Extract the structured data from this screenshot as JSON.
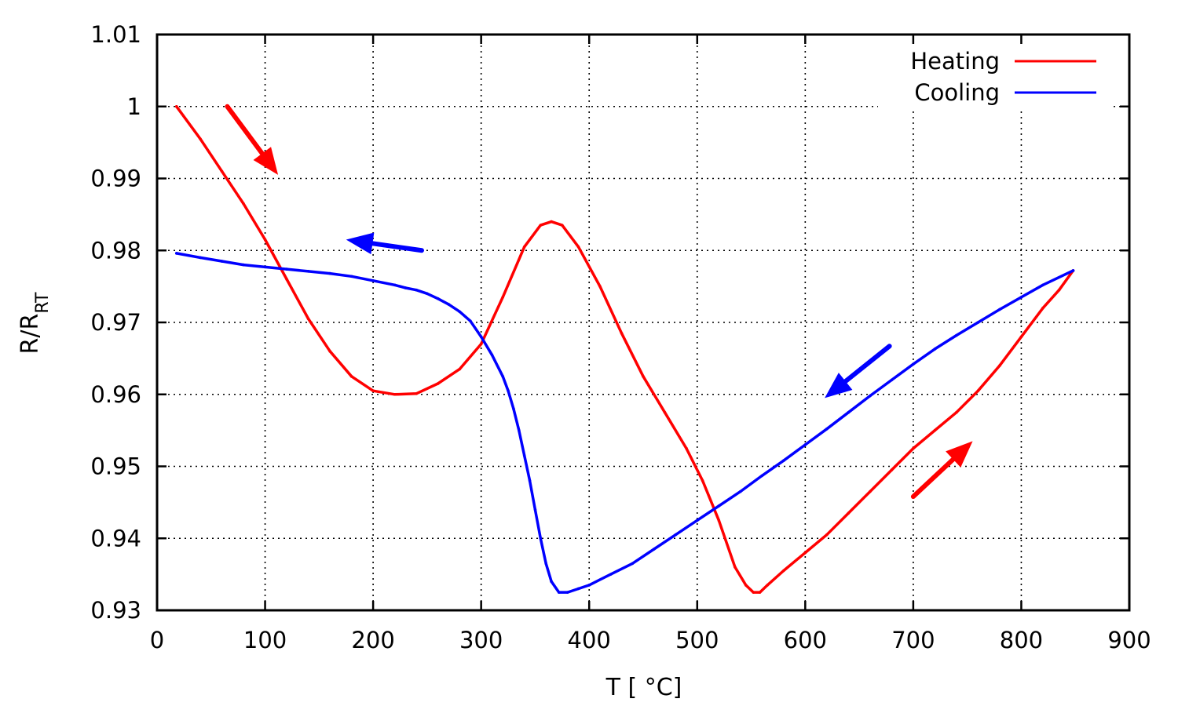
{
  "chart_data": {
    "type": "line",
    "xlabel": "T [ °C]",
    "ylabel_main": "R/R",
    "ylabel_sub": "RT",
    "xlim": [
      0,
      900
    ],
    "ylim": [
      0.93,
      1.01
    ],
    "xticks": [
      "0",
      "100",
      "200",
      "300",
      "400",
      "500",
      "600",
      "700",
      "800",
      "900"
    ],
    "yticks": [
      "0.93",
      "0.94",
      "0.95",
      "0.96",
      "0.97",
      "0.98",
      "0.99",
      "1",
      "1.01"
    ],
    "grid": true,
    "legend_position": "top-right",
    "series": [
      {
        "name": "Heating",
        "color": "#ff0000",
        "x": [
          18,
          40,
          60,
          80,
          100,
          120,
          140,
          160,
          180,
          200,
          220,
          240,
          260,
          280,
          300,
          320,
          340,
          355,
          365,
          375,
          390,
          410,
          430,
          450,
          470,
          490,
          505,
          520,
          535,
          545,
          552,
          558,
          565,
          580,
          600,
          620,
          640,
          660,
          680,
          700,
          720,
          740,
          760,
          780,
          800,
          820,
          835,
          848
        ],
        "y": [
          1.0,
          0.9955,
          0.991,
          0.9865,
          0.9815,
          0.976,
          0.9705,
          0.966,
          0.9625,
          0.9605,
          0.96,
          0.9601,
          0.9615,
          0.9635,
          0.967,
          0.9735,
          0.9805,
          0.9835,
          0.984,
          0.9835,
          0.9805,
          0.975,
          0.9685,
          0.9625,
          0.9575,
          0.9525,
          0.948,
          0.9425,
          0.936,
          0.9335,
          0.9325,
          0.9325,
          0.9335,
          0.9355,
          0.938,
          0.9405,
          0.9435,
          0.9465,
          0.9495,
          0.9525,
          0.955,
          0.9575,
          0.9605,
          0.964,
          0.968,
          0.972,
          0.9745,
          0.9772
        ]
      },
      {
        "name": "Cooling",
        "color": "#0000ff",
        "x": [
          848,
          820,
          800,
          780,
          760,
          740,
          720,
          700,
          680,
          660,
          640,
          620,
          600,
          580,
          560,
          540,
          520,
          500,
          480,
          460,
          440,
          420,
          400,
          390,
          380,
          372,
          365,
          360,
          355,
          350,
          345,
          340,
          335,
          330,
          325,
          320,
          310,
          300,
          290,
          280,
          270,
          260,
          250,
          240,
          230,
          220,
          200,
          180,
          160,
          140,
          120,
          100,
          80,
          60,
          40,
          18
        ],
        "y": [
          0.9772,
          0.9752,
          0.9735,
          0.9718,
          0.97,
          0.9682,
          0.9663,
          0.9642,
          0.962,
          0.9598,
          0.9575,
          0.9552,
          0.953,
          0.9508,
          0.9487,
          0.9465,
          0.9445,
          0.9425,
          0.9405,
          0.9385,
          0.9365,
          0.935,
          0.9335,
          0.933,
          0.9325,
          0.9325,
          0.934,
          0.9365,
          0.94,
          0.944,
          0.948,
          0.9515,
          0.955,
          0.958,
          0.9605,
          0.9625,
          0.9655,
          0.968,
          0.9702,
          0.9715,
          0.9725,
          0.9733,
          0.974,
          0.9745,
          0.9748,
          0.9752,
          0.9758,
          0.9764,
          0.9768,
          0.9771,
          0.9774,
          0.9777,
          0.978,
          0.9785,
          0.979,
          0.9796
        ]
      }
    ],
    "annotations": [
      {
        "type": "arrow",
        "color": "#ff0000",
        "from": [
          65,
          1.0
        ],
        "to": [
          112,
          0.9905
        ]
      },
      {
        "type": "arrow",
        "color": "#0000ff",
        "from": [
          245,
          0.98
        ],
        "to": [
          175,
          0.9815
        ]
      },
      {
        "type": "arrow",
        "color": "#0000ff",
        "from": [
          678,
          0.9667
        ],
        "to": [
          618,
          0.9595
        ]
      },
      {
        "type": "arrow",
        "color": "#ff0000",
        "from": [
          700,
          0.9458
        ],
        "to": [
          755,
          0.9535
        ]
      }
    ]
  }
}
